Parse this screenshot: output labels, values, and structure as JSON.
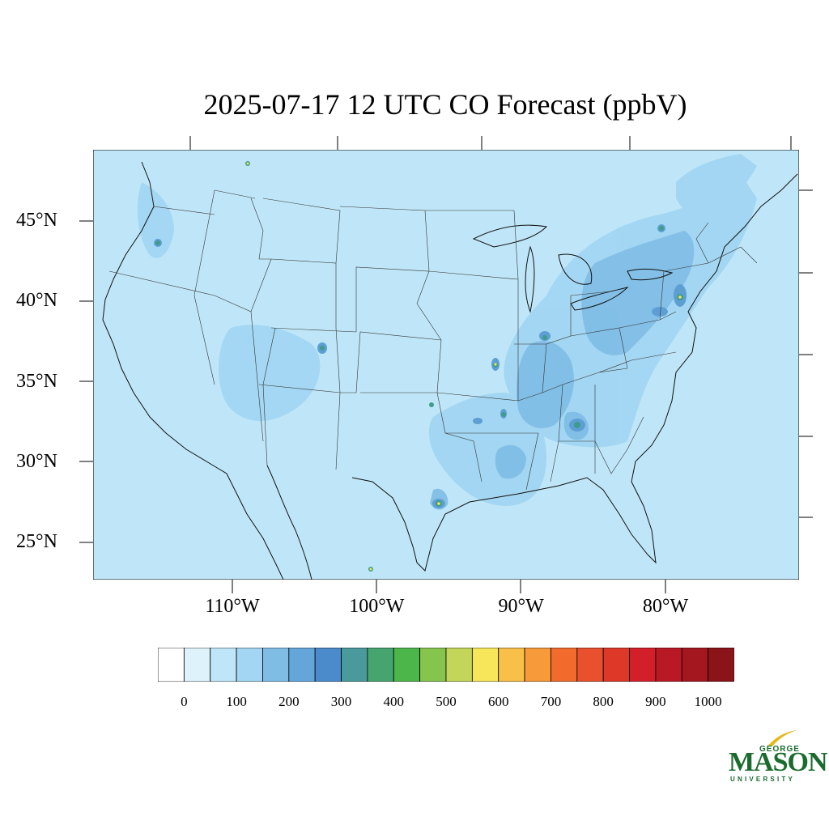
{
  "title": "2025-07-17 12 UTC CO Forecast (ppbV)",
  "map": {
    "background_color": "#bfe6f8",
    "enhanced_color": "#a2d6f2",
    "moderate_color": "#7fbde5",
    "high_color": "#5e9fd3",
    "hotspot_color": "#3f9c8c",
    "peak_color": "#f3e45a",
    "border_color": "#222222"
  },
  "lat_labels": [
    {
      "label": "45°N",
      "lat": 45
    },
    {
      "label": "40°N",
      "lat": 40
    },
    {
      "label": "35°N",
      "lat": 35
    },
    {
      "label": "30°N",
      "lat": 30
    },
    {
      "label": "25°N",
      "lat": 25
    }
  ],
  "lon_labels": [
    {
      "label": "110°W",
      "lon": -110
    },
    {
      "label": "100°W",
      "lon": -100
    },
    {
      "label": "90°W",
      "lon": -90
    },
    {
      "label": "80°W",
      "lon": -80
    }
  ],
  "colorbar": {
    "colors": [
      "#ffffff",
      "#def2fb",
      "#bfe6f8",
      "#a2d6f2",
      "#7fbde5",
      "#65a6da",
      "#4b8bcb",
      "#4a9a9c",
      "#46a56f",
      "#4cb64a",
      "#86c54d",
      "#c3d65a",
      "#f7e659",
      "#f8c048",
      "#f79a3a",
      "#f26b2c",
      "#e9502d",
      "#dd3828",
      "#d21f2a",
      "#b91924",
      "#a4171f",
      "#8b1419"
    ],
    "tick_labels": [
      "0",
      "100",
      "200",
      "300",
      "400",
      "500",
      "600",
      "700",
      "800",
      "900",
      "1000"
    ]
  },
  "logo": {
    "george": "GEORGE",
    "mason": "MASON",
    "university": "UNIVERSITY"
  }
}
